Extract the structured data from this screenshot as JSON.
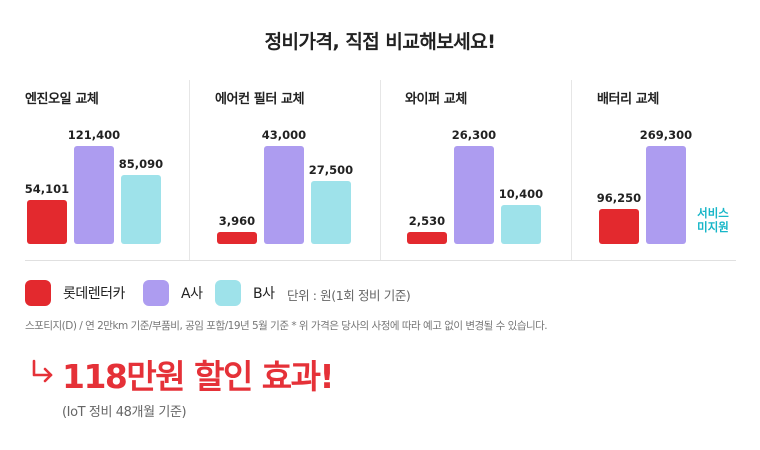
{
  "title": "정비가격, 직접 비교해보세요!",
  "colors": {
    "lotte": "#e3292e",
    "a": "#ad9cf0",
    "b": "#9ee2ea",
    "na_text": "#17b6c8",
    "highlight": "#e53138"
  },
  "chart_data": [
    {
      "type": "bar",
      "title": "엔진오일 교체",
      "categories": [
        "롯데렌터카",
        "A사",
        "B사"
      ],
      "values": [
        54101,
        121400,
        85090
      ],
      "value_labels": [
        "54,101",
        "121,400",
        "85,090"
      ]
    },
    {
      "type": "bar",
      "title": "에어컨 필터 교체",
      "categories": [
        "롯데렌터카",
        "A사",
        "B사"
      ],
      "values": [
        3960,
        43000,
        27500
      ],
      "value_labels": [
        "3,960",
        "43,000",
        "27,500"
      ]
    },
    {
      "type": "bar",
      "title": "와이퍼 교체",
      "categories": [
        "롯데렌터카",
        "A사",
        "B사"
      ],
      "values": [
        2530,
        26300,
        10400
      ],
      "value_labels": [
        "2,530",
        "26,300",
        "10,400"
      ]
    },
    {
      "type": "bar",
      "title": "배터리 교체",
      "categories": [
        "롯데렌터카",
        "A사",
        "B사"
      ],
      "values": [
        96250,
        269300,
        null
      ],
      "value_labels": [
        "96,250",
        "269,300",
        ""
      ],
      "na_label": [
        "서비스",
        "미지원"
      ]
    }
  ],
  "legend": {
    "items": [
      {
        "label": "롯데렌터카",
        "color": "#e3292e"
      },
      {
        "label": "A사",
        "color": "#ad9cf0"
      },
      {
        "label": "B사",
        "color": "#9ee2ea"
      }
    ],
    "unit": "단위 : 원(1회 정비 기준)"
  },
  "note": "스포티지(D) / 연 2만km 기준/부품비, 공임 포함/19년 5월 기준  * 위 가격은 당사의 사정에 따라 예고 없이 변경될 수 있습니다.",
  "highlight": {
    "text": "118만원 할인 효과!",
    "sub": "(IoT 정비 48개월 기준)"
  }
}
